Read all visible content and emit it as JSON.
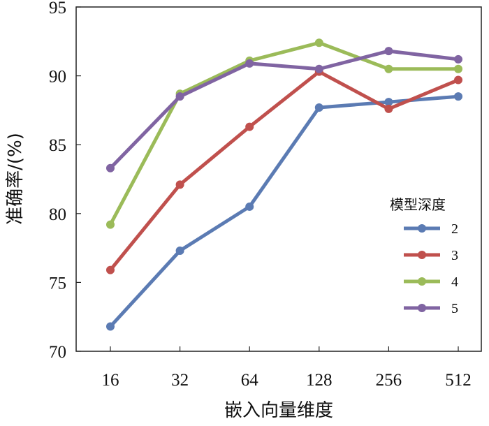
{
  "chart_data": {
    "type": "line",
    "title": "",
    "xlabel": "嵌入向量维度",
    "ylabel": "准确率/(%)",
    "categories": [
      "16",
      "32",
      "64",
      "128",
      "256",
      "512"
    ],
    "ylim": [
      70,
      95
    ],
    "yticks": [
      70,
      75,
      80,
      85,
      90,
      95
    ],
    "grid": false,
    "legend": {
      "title": "模型深度",
      "placement": "right"
    },
    "series": [
      {
        "name": "2",
        "color": "#5b7bb3",
        "values": [
          71.8,
          77.3,
          80.5,
          87.7,
          88.1,
          88.5
        ]
      },
      {
        "name": "3",
        "color": "#c0504d",
        "values": [
          75.9,
          82.1,
          86.3,
          90.3,
          87.6,
          89.7
        ]
      },
      {
        "name": "4",
        "color": "#9bbb59",
        "values": [
          79.2,
          88.7,
          91.1,
          92.4,
          90.5,
          90.5
        ]
      },
      {
        "name": "5",
        "color": "#8064a2",
        "values": [
          83.3,
          88.5,
          90.9,
          90.5,
          91.8,
          91.2
        ]
      }
    ]
  }
}
